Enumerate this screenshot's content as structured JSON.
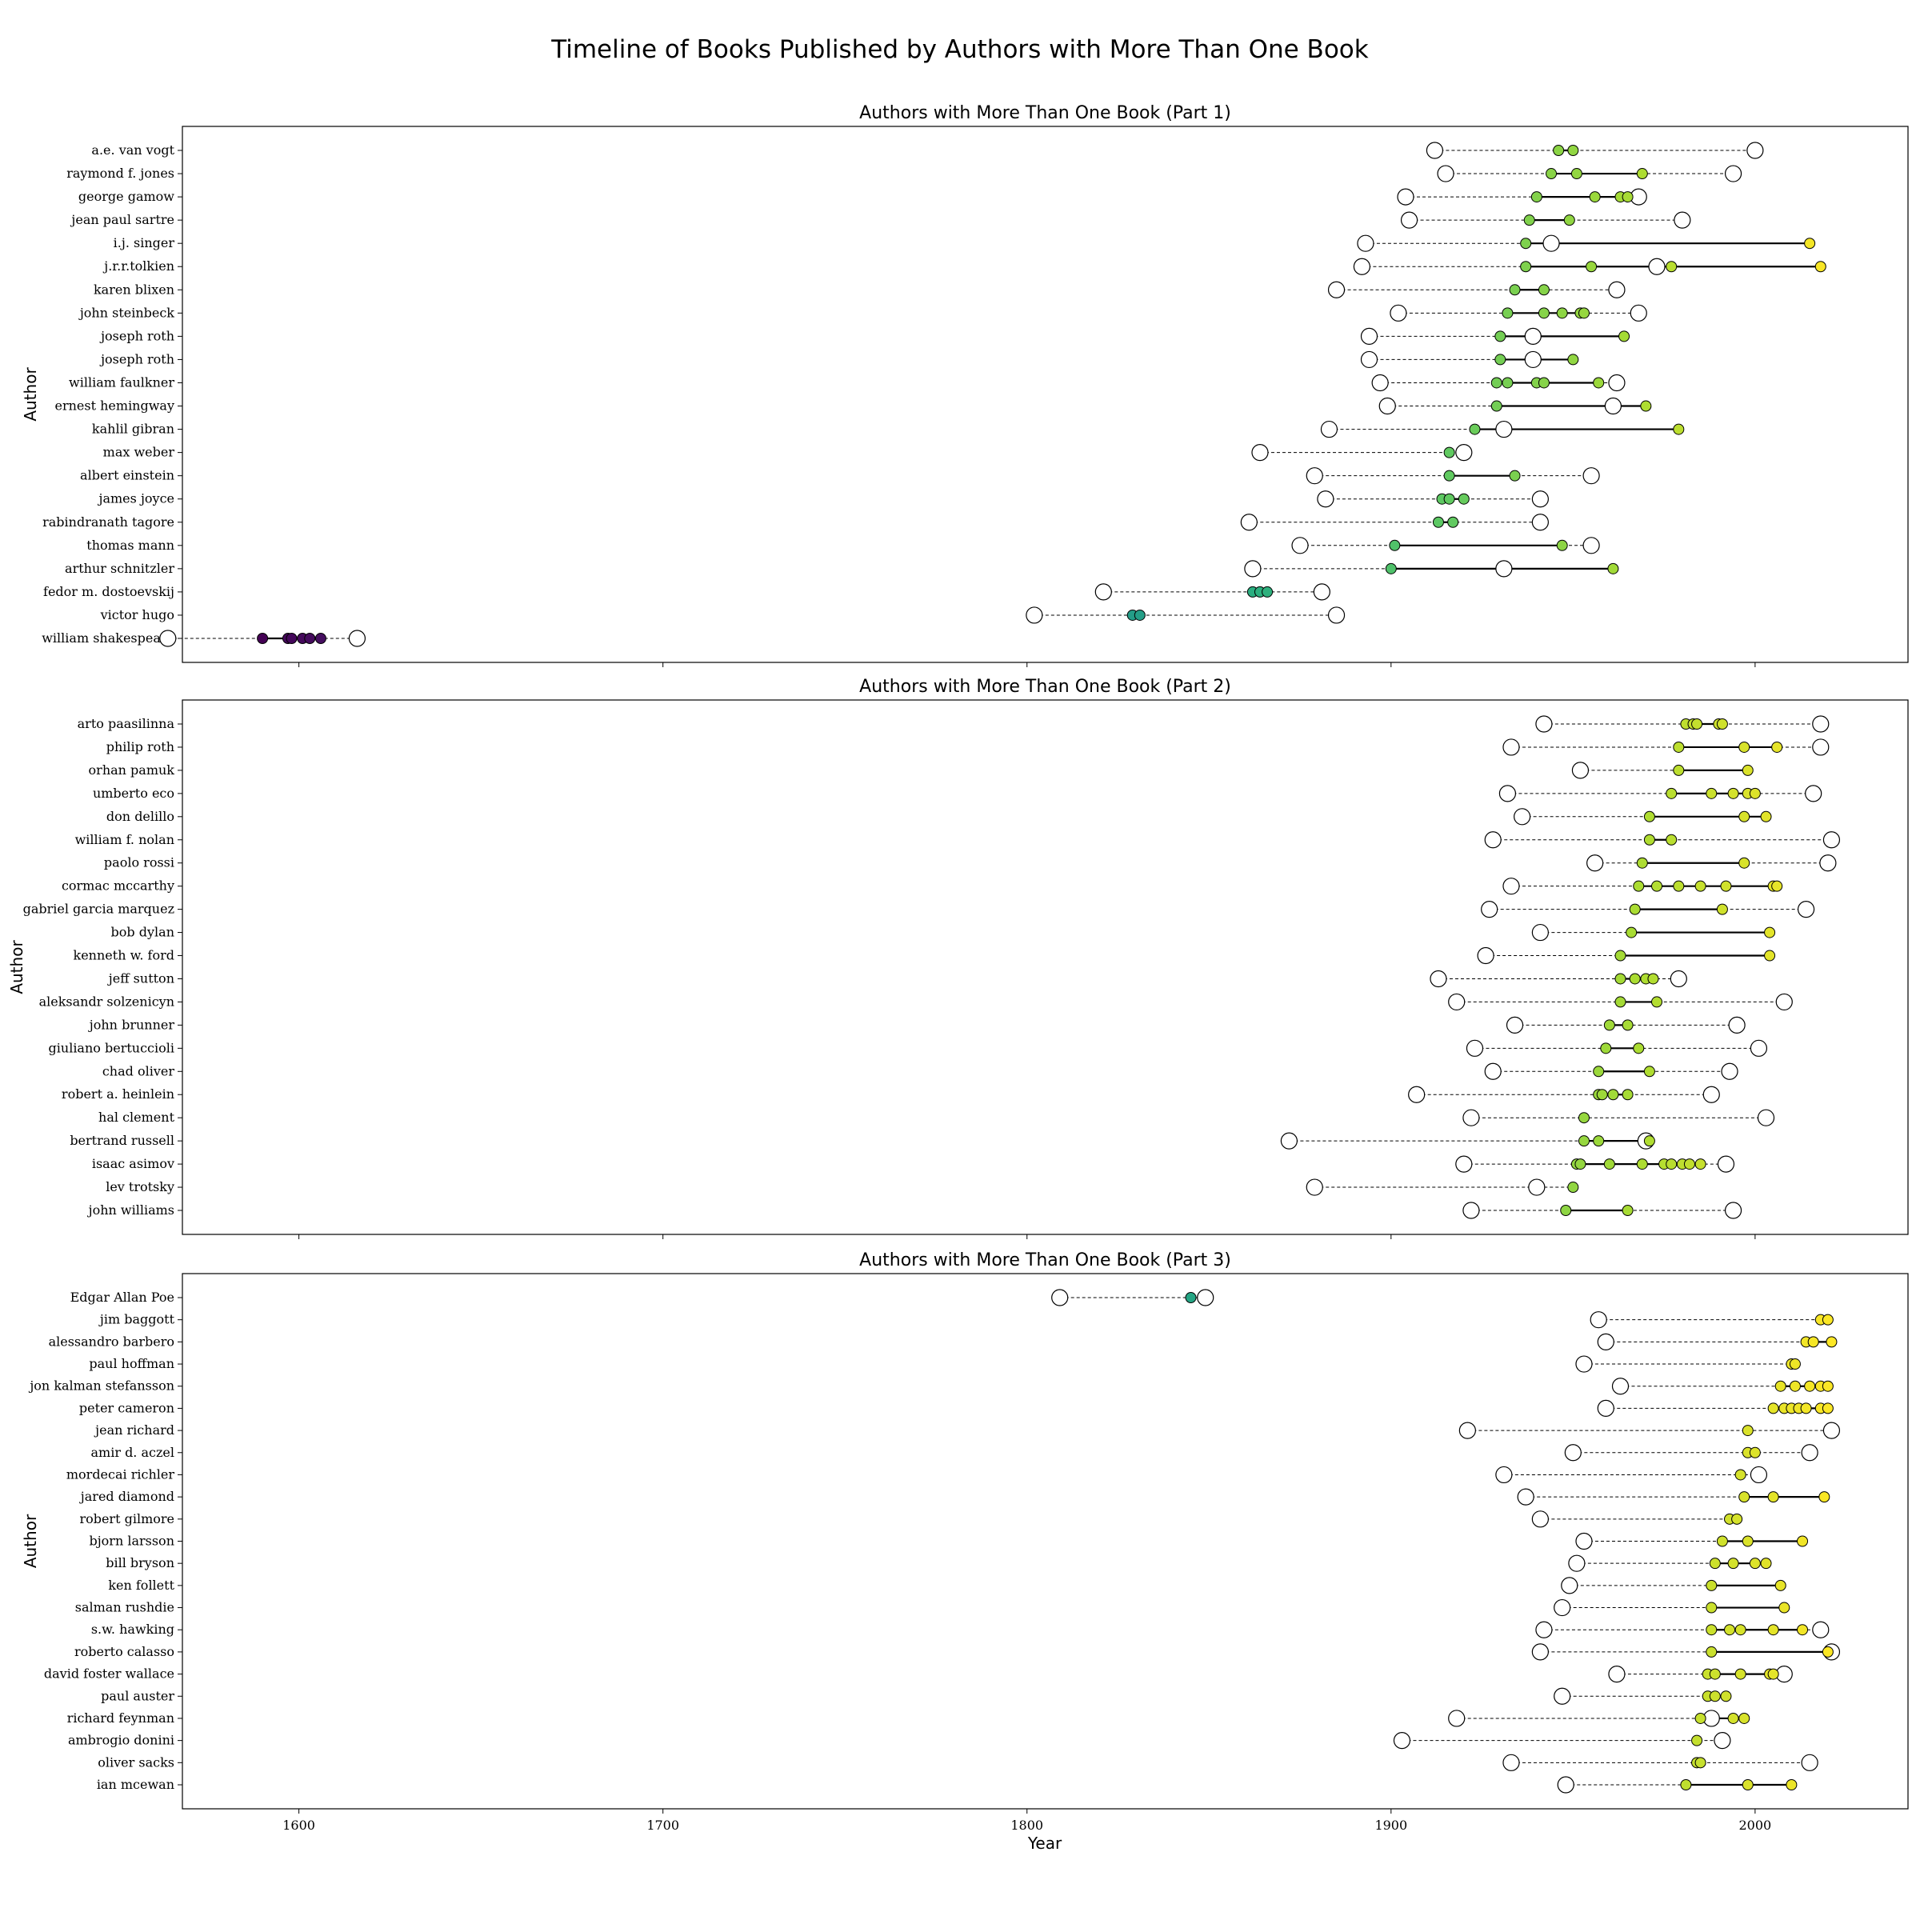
{
  "chart_data": {
    "type": "timeline-dot",
    "title": "Timeline of Books Published by Authors with More Than One Book",
    "xlabel": "Year",
    "ylabel": "Author",
    "xlim": [
      1568,
      2042
    ],
    "xticks": [
      "1600",
      "1700",
      "1800",
      "1900",
      "2000"
    ],
    "grid": false,
    "color_scale": "viridis",
    "panels": [
      {
        "title": "Authors with More Than One Book (Part 1)",
        "authors": [
          {
            "name": "a.e. van vogt",
            "birth": 1912,
            "death": 2000,
            "books": [
              1946,
              1950
            ]
          },
          {
            "name": "raymond f. jones",
            "birth": 1915,
            "death": 1994,
            "books": [
              1944,
              1951,
              1969
            ]
          },
          {
            "name": "george gamow",
            "birth": 1904,
            "death": 1968,
            "books": [
              1940,
              1956,
              1963,
              1965
            ]
          },
          {
            "name": "jean paul sartre",
            "birth": 1905,
            "death": 1980,
            "books": [
              1938,
              1949
            ]
          },
          {
            "name": "i.j. singer",
            "birth": 1893,
            "death": 1944,
            "books": [
              1937,
              2015
            ]
          },
          {
            "name": "j.r.r.tolkien",
            "birth": 1892,
            "death": 1973,
            "books": [
              1937,
              1955,
              1977,
              2018
            ]
          },
          {
            "name": "karen blixen",
            "birth": 1885,
            "death": 1962,
            "books": [
              1934,
              1942
            ]
          },
          {
            "name": "john steinbeck",
            "birth": 1902,
            "death": 1968,
            "books": [
              1932,
              1942,
              1947,
              1952,
              1953
            ]
          },
          {
            "name": "joseph roth",
            "birth": 1894,
            "death": 1939,
            "books": [
              1930,
              1964
            ]
          },
          {
            "name": "joseph roth",
            "birth": 1894,
            "death": 1939,
            "books": [
              1930,
              1950
            ]
          },
          {
            "name": "william faulkner",
            "birth": 1897,
            "death": 1962,
            "books": [
              1929,
              1932,
              1940,
              1942,
              1957
            ]
          },
          {
            "name": "ernest hemingway",
            "birth": 1899,
            "death": 1961,
            "books": [
              1929,
              1970
            ]
          },
          {
            "name": "kahlil gibran",
            "birth": 1883,
            "death": 1931,
            "books": [
              1923,
              1979
            ]
          },
          {
            "name": "max weber",
            "birth": 1864,
            "death": 1920,
            "books": [
              1916
            ]
          },
          {
            "name": "albert einstein",
            "birth": 1879,
            "death": 1955,
            "books": [
              1916,
              1934
            ]
          },
          {
            "name": "james joyce",
            "birth": 1882,
            "death": 1941,
            "books": [
              1914,
              1916,
              1920
            ]
          },
          {
            "name": "rabindranath tagore",
            "birth": 1861,
            "death": 1941,
            "books": [
              1913,
              1917
            ]
          },
          {
            "name": "thomas mann",
            "birth": 1875,
            "death": 1955,
            "books": [
              1901,
              1947
            ]
          },
          {
            "name": "arthur schnitzler",
            "birth": 1862,
            "death": 1931,
            "books": [
              1900,
              1961
            ]
          },
          {
            "name": "fedor m. dostoevskij",
            "birth": 1821,
            "death": 1881,
            "books": [
              1862,
              1864,
              1866
            ]
          },
          {
            "name": "victor hugo",
            "birth": 1802,
            "death": 1885,
            "books": [
              1829,
              1831
            ]
          },
          {
            "name": "william shakespeare",
            "birth": 1564,
            "death": 1616,
            "books": [
              1590,
              1597,
              1598,
              1601,
              1603,
              1606
            ]
          }
        ]
      },
      {
        "title": "Authors with More Than One Book (Part 2)",
        "authors": [
          {
            "name": "arto paasilinna",
            "birth": 1942,
            "death": 2018,
            "books": [
              1981,
              1983,
              1984,
              1990,
              1991
            ]
          },
          {
            "name": "philip roth",
            "birth": 1933,
            "death": 2018,
            "books": [
              1979,
              1997,
              2006
            ]
          },
          {
            "name": "orhan pamuk",
            "birth": 1952,
            "death": null,
            "books": [
              1979,
              1998
            ]
          },
          {
            "name": "umberto eco",
            "birth": 1932,
            "death": 2016,
            "books": [
              1977,
              1988,
              1994,
              1998,
              2000
            ]
          },
          {
            "name": "don delillo",
            "birth": 1936,
            "death": null,
            "books": [
              1971,
              1997,
              2003
            ]
          },
          {
            "name": "william f. nolan",
            "birth": 1928,
            "death": 2021,
            "books": [
              1971,
              1977
            ]
          },
          {
            "name": "paolo rossi",
            "birth": 1956,
            "death": 2020,
            "books": [
              1969,
              1997
            ]
          },
          {
            "name": "cormac mccarthy",
            "birth": 1933,
            "death": null,
            "books": [
              1968,
              1973,
              1979,
              1985,
              1992,
              2005,
              2006
            ]
          },
          {
            "name": "gabriel garcia marquez",
            "birth": 1927,
            "death": 2014,
            "books": [
              1967,
              1991
            ]
          },
          {
            "name": "bob dylan",
            "birth": 1941,
            "death": null,
            "books": [
              1966,
              2004
            ]
          },
          {
            "name": "kenneth w. ford",
            "birth": 1926,
            "death": null,
            "books": [
              1963,
              2004
            ]
          },
          {
            "name": "jeff sutton",
            "birth": 1913,
            "death": 1979,
            "books": [
              1963,
              1967,
              1970,
              1972
            ]
          },
          {
            "name": "aleksandr solzenicyn",
            "birth": 1918,
            "death": 2008,
            "books": [
              1963,
              1973
            ]
          },
          {
            "name": "john brunner",
            "birth": 1934,
            "death": 1995,
            "books": [
              1960,
              1965
            ]
          },
          {
            "name": "giuliano bertuccioli",
            "birth": 1923,
            "death": 2001,
            "books": [
              1959,
              1968
            ]
          },
          {
            "name": "chad oliver",
            "birth": 1928,
            "death": 1993,
            "books": [
              1957,
              1971
            ]
          },
          {
            "name": "robert a. heinlein",
            "birth": 1907,
            "death": 1988,
            "books": [
              1957,
              1958,
              1961,
              1965
            ]
          },
          {
            "name": "hal clement",
            "birth": 1922,
            "death": 2003,
            "books": [
              1953
            ]
          },
          {
            "name": "bertrand russell",
            "birth": 1872,
            "death": 1970,
            "books": [
              1953,
              1957,
              1971
            ]
          },
          {
            "name": "isaac asimov",
            "birth": 1920,
            "death": 1992,
            "books": [
              1951,
              1952,
              1960,
              1969,
              1975,
              1977,
              1980,
              1982,
              1985
            ]
          },
          {
            "name": "lev trotsky",
            "birth": 1879,
            "death": 1940,
            "books": [
              1950
            ]
          },
          {
            "name": "john williams",
            "birth": 1922,
            "death": 1994,
            "books": [
              1948,
              1965
            ]
          }
        ]
      },
      {
        "title": "Authors with More Than One Book (Part 3)",
        "authors": [
          {
            "name": "Edgar Allan Poe",
            "birth": 1809,
            "death": 1849,
            "books": [
              1845
            ]
          },
          {
            "name": "jim baggott",
            "birth": 1957,
            "death": null,
            "books": [
              2018,
              2020
            ]
          },
          {
            "name": "alessandro barbero",
            "birth": 1959,
            "death": null,
            "books": [
              2014,
              2016,
              2021
            ]
          },
          {
            "name": "paul hoffman",
            "birth": 1953,
            "death": null,
            "books": [
              2010,
              2011
            ]
          },
          {
            "name": "jon kalman stefansson",
            "birth": 1963,
            "death": null,
            "books": [
              2007,
              2011,
              2015,
              2018,
              2020
            ]
          },
          {
            "name": "peter cameron",
            "birth": 1959,
            "death": null,
            "books": [
              2005,
              2008,
              2010,
              2012,
              2014,
              2018,
              2020
            ]
          },
          {
            "name": "jean richard",
            "birth": 1921,
            "death": 2021,
            "books": [
              1998
            ]
          },
          {
            "name": "amir d. aczel",
            "birth": 1950,
            "death": 2015,
            "books": [
              1998,
              2000
            ]
          },
          {
            "name": "mordecai richler",
            "birth": 1931,
            "death": 2001,
            "books": [
              1996
            ]
          },
          {
            "name": "jared diamond",
            "birth": 1937,
            "death": null,
            "books": [
              1997,
              2005,
              2019
            ]
          },
          {
            "name": "robert gilmore",
            "birth": 1941,
            "death": null,
            "books": [
              1993,
              1995
            ]
          },
          {
            "name": "bjorn larsson",
            "birth": 1953,
            "death": null,
            "books": [
              1991,
              1998,
              2013
            ]
          },
          {
            "name": "bill bryson",
            "birth": 1951,
            "death": null,
            "books": [
              1989,
              1994,
              2000,
              2003
            ]
          },
          {
            "name": "ken follett",
            "birth": 1949,
            "death": null,
            "books": [
              1988,
              2007
            ]
          },
          {
            "name": "salman rushdie",
            "birth": 1947,
            "death": null,
            "books": [
              1988,
              2008
            ]
          },
          {
            "name": "s.w. hawking",
            "birth": 1942,
            "death": 2018,
            "books": [
              1988,
              1993,
              1996,
              2005,
              2013
            ]
          },
          {
            "name": "roberto calasso",
            "birth": 1941,
            "death": 2021,
            "books": [
              1988,
              2020
            ]
          },
          {
            "name": "david foster wallace",
            "birth": 1962,
            "death": 2008,
            "books": [
              1987,
              1989,
              1996,
              2004,
              2005
            ]
          },
          {
            "name": "paul auster",
            "birth": 1947,
            "death": null,
            "books": [
              1987,
              1989,
              1992
            ]
          },
          {
            "name": "richard feynman",
            "birth": 1918,
            "death": 1988,
            "books": [
              1985,
              1994,
              1997
            ]
          },
          {
            "name": "ambrogio donini",
            "birth": 1903,
            "death": 1991,
            "books": [
              1984
            ]
          },
          {
            "name": "oliver sacks",
            "birth": 1933,
            "death": 2015,
            "books": [
              1984,
              1985
            ]
          },
          {
            "name": "ian mcewan",
            "birth": 1948,
            "death": null,
            "books": [
              1981,
              1998,
              2010
            ]
          }
        ]
      }
    ]
  }
}
